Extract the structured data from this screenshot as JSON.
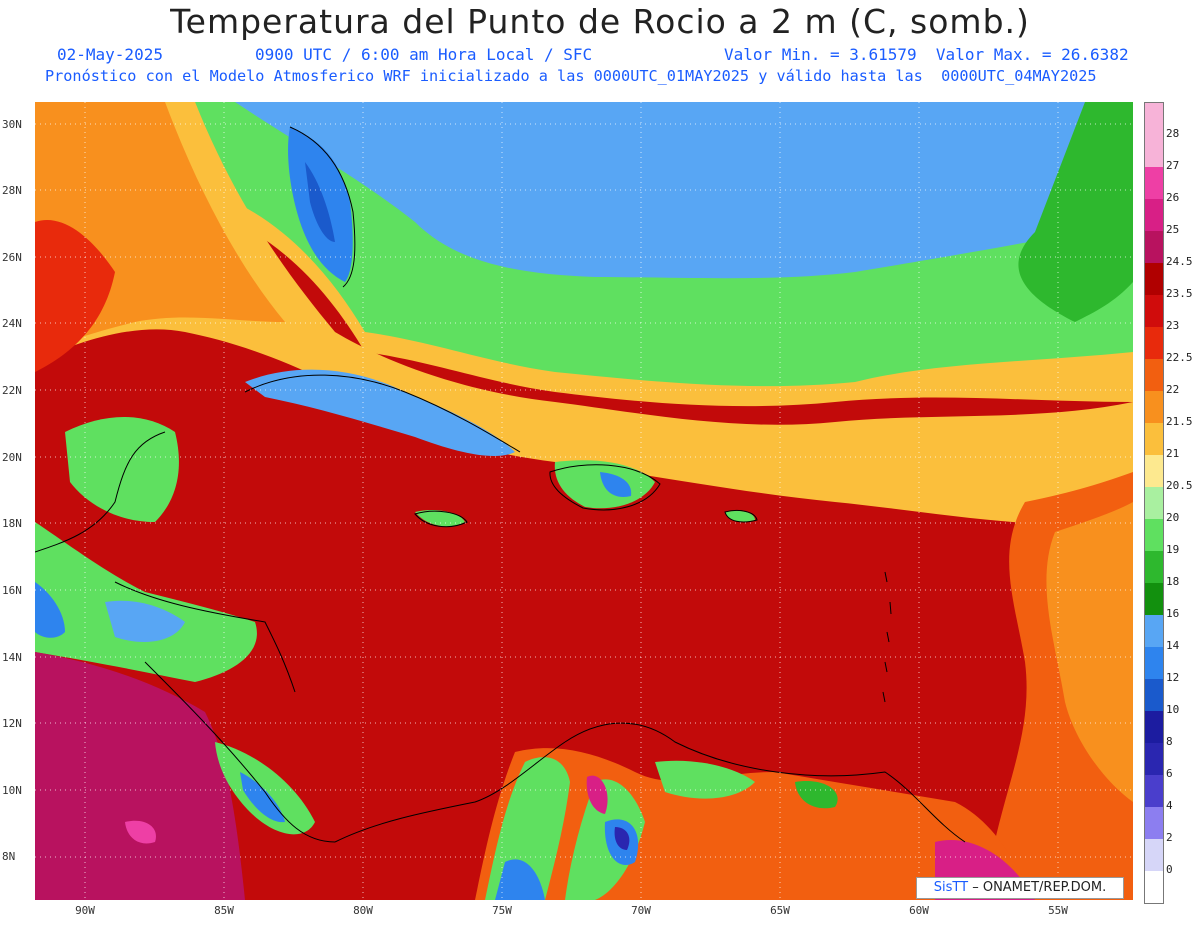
{
  "header": {
    "title": "Temperatura del Punto de Rocio a 2 m (C, somb.)",
    "date": "02-May-2025",
    "time": "0900 UTC / 6:00 am Hora Local / SFC",
    "minmax": "Valor Min. = 3.61579  Valor Max. = 26.6382",
    "model": "Pronóstico con el Modelo Atmosferico WRF inicializado a las 0000UTC_01MAY2025 y válido hasta las  0000UTC_04MAY2025"
  },
  "axes": {
    "lat_labels": [
      "30N",
      "28N",
      "26N",
      "24N",
      "22N",
      "20N",
      "18N",
      "16N",
      "14N",
      "12N",
      "10N",
      "8N"
    ],
    "lon_labels": [
      "90W",
      "85W",
      "80W",
      "75W",
      "70W",
      "65W",
      "60W",
      "55W"
    ]
  },
  "colorbar": {
    "labels": [
      "28",
      "27",
      "26",
      "25",
      "24.5",
      "23.5",
      "23",
      "22.5",
      "22",
      "21.5",
      "21",
      "20.5",
      "20",
      "19",
      "18",
      "16",
      "14",
      "12",
      "10",
      "8",
      "6",
      "4",
      "2",
      "0"
    ],
    "colors": [
      "#f7b3d8",
      "#ee3fa5",
      "#d81f86",
      "#b8125f",
      "#b00000",
      "#d00c0c",
      "#e82a0c",
      "#f25f10",
      "#f8901e",
      "#fbbf3c",
      "#fde98f",
      "#a9f0a0",
      "#5fe060",
      "#2eb82e",
      "#12900e",
      "#58a6f4",
      "#2e84ee",
      "#1a5acc",
      "#1c1ca0",
      "#2a26b0",
      "#4a3ecc",
      "#8c7ef0",
      "#d6d6f8",
      "#ffffff"
    ]
  },
  "credit": {
    "brand": "SisTT",
    "org": "– ONAMET/REP.DOM."
  }
}
